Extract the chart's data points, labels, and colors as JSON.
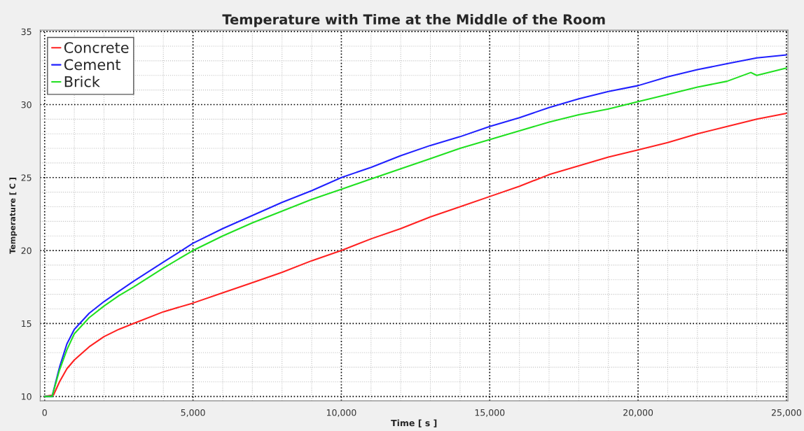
{
  "chart_data": {
    "type": "line",
    "title": "Temperature with Time at the Middle of the Room",
    "xlabel": "Time [ s ]",
    "ylabel": "Temperature [ C ]",
    "xlim": [
      -150,
      25050
    ],
    "ylim": [
      9.7,
      35.1
    ],
    "xticks": [
      {
        "value": 0,
        "label": "0"
      },
      {
        "value": 5000,
        "label": "5,000"
      },
      {
        "value": 10000,
        "label": "10,000"
      },
      {
        "value": 15000,
        "label": "15,000"
      },
      {
        "value": 20000,
        "label": "20,000"
      },
      {
        "value": 25000,
        "label": "25,000"
      }
    ],
    "yticks": [
      10,
      15,
      20,
      25,
      30,
      35
    ],
    "grid": true,
    "legend": "top left",
    "marker": "none",
    "line_style": "solid",
    "series": [
      {
        "name": "Concrete",
        "color": "#ff2020",
        "x": [
          0,
          300,
          500,
          750,
          1000,
          1500,
          2000,
          2500,
          3000,
          4000,
          5000,
          6000,
          7000,
          8000,
          9000,
          10000,
          11000,
          12000,
          13000,
          14000,
          15000,
          16000,
          17000,
          18000,
          19000,
          20000,
          21000,
          22000,
          23000,
          24000,
          25000
        ],
        "values": [
          10,
          10.1,
          11.0,
          11.9,
          12.5,
          13.4,
          14.1,
          14.6,
          15.0,
          15.8,
          16.4,
          17.1,
          17.8,
          18.5,
          19.3,
          20.0,
          20.8,
          21.5,
          22.3,
          23.0,
          23.7,
          24.4,
          25.2,
          25.8,
          26.4,
          26.9,
          27.4,
          28.0,
          28.5,
          29.0,
          29.4
        ]
      },
      {
        "name": "Cement",
        "color": "#2020ff",
        "x": [
          0,
          250,
          500,
          750,
          1000,
          1500,
          2000,
          2500,
          3000,
          4000,
          5000,
          6000,
          7000,
          8000,
          9000,
          10000,
          11000,
          12000,
          13000,
          14000,
          15000,
          16000,
          17000,
          18000,
          19000,
          20000,
          21000,
          22000,
          23000,
          24000,
          25000
        ],
        "values": [
          10,
          10,
          12.0,
          13.6,
          14.6,
          15.7,
          16.5,
          17.2,
          17.9,
          19.2,
          20.5,
          21.5,
          22.4,
          23.3,
          24.1,
          25.0,
          25.7,
          26.5,
          27.2,
          27.8,
          28.5,
          29.1,
          29.8,
          30.4,
          30.9,
          31.3,
          31.9,
          32.4,
          32.8,
          33.2,
          33.4
        ]
      },
      {
        "name": "Brick",
        "color": "#20e020",
        "x": [
          0,
          250,
          500,
          750,
          1000,
          1500,
          2000,
          2500,
          3000,
          4000,
          5000,
          6000,
          7000,
          8000,
          9000,
          10000,
          11000,
          12000,
          13000,
          14000,
          15000,
          16000,
          17000,
          18000,
          19000,
          20000,
          21000,
          22000,
          23000,
          23800,
          24000,
          25000
        ],
        "values": [
          10,
          10,
          11.8,
          13.2,
          14.3,
          15.4,
          16.2,
          16.9,
          17.5,
          18.8,
          20.0,
          21.0,
          21.9,
          22.7,
          23.5,
          24.2,
          24.9,
          25.6,
          26.3,
          27.0,
          27.6,
          28.2,
          28.8,
          29.3,
          29.7,
          30.2,
          30.7,
          31.2,
          31.6,
          32.2,
          32.0,
          32.5
        ]
      }
    ]
  }
}
